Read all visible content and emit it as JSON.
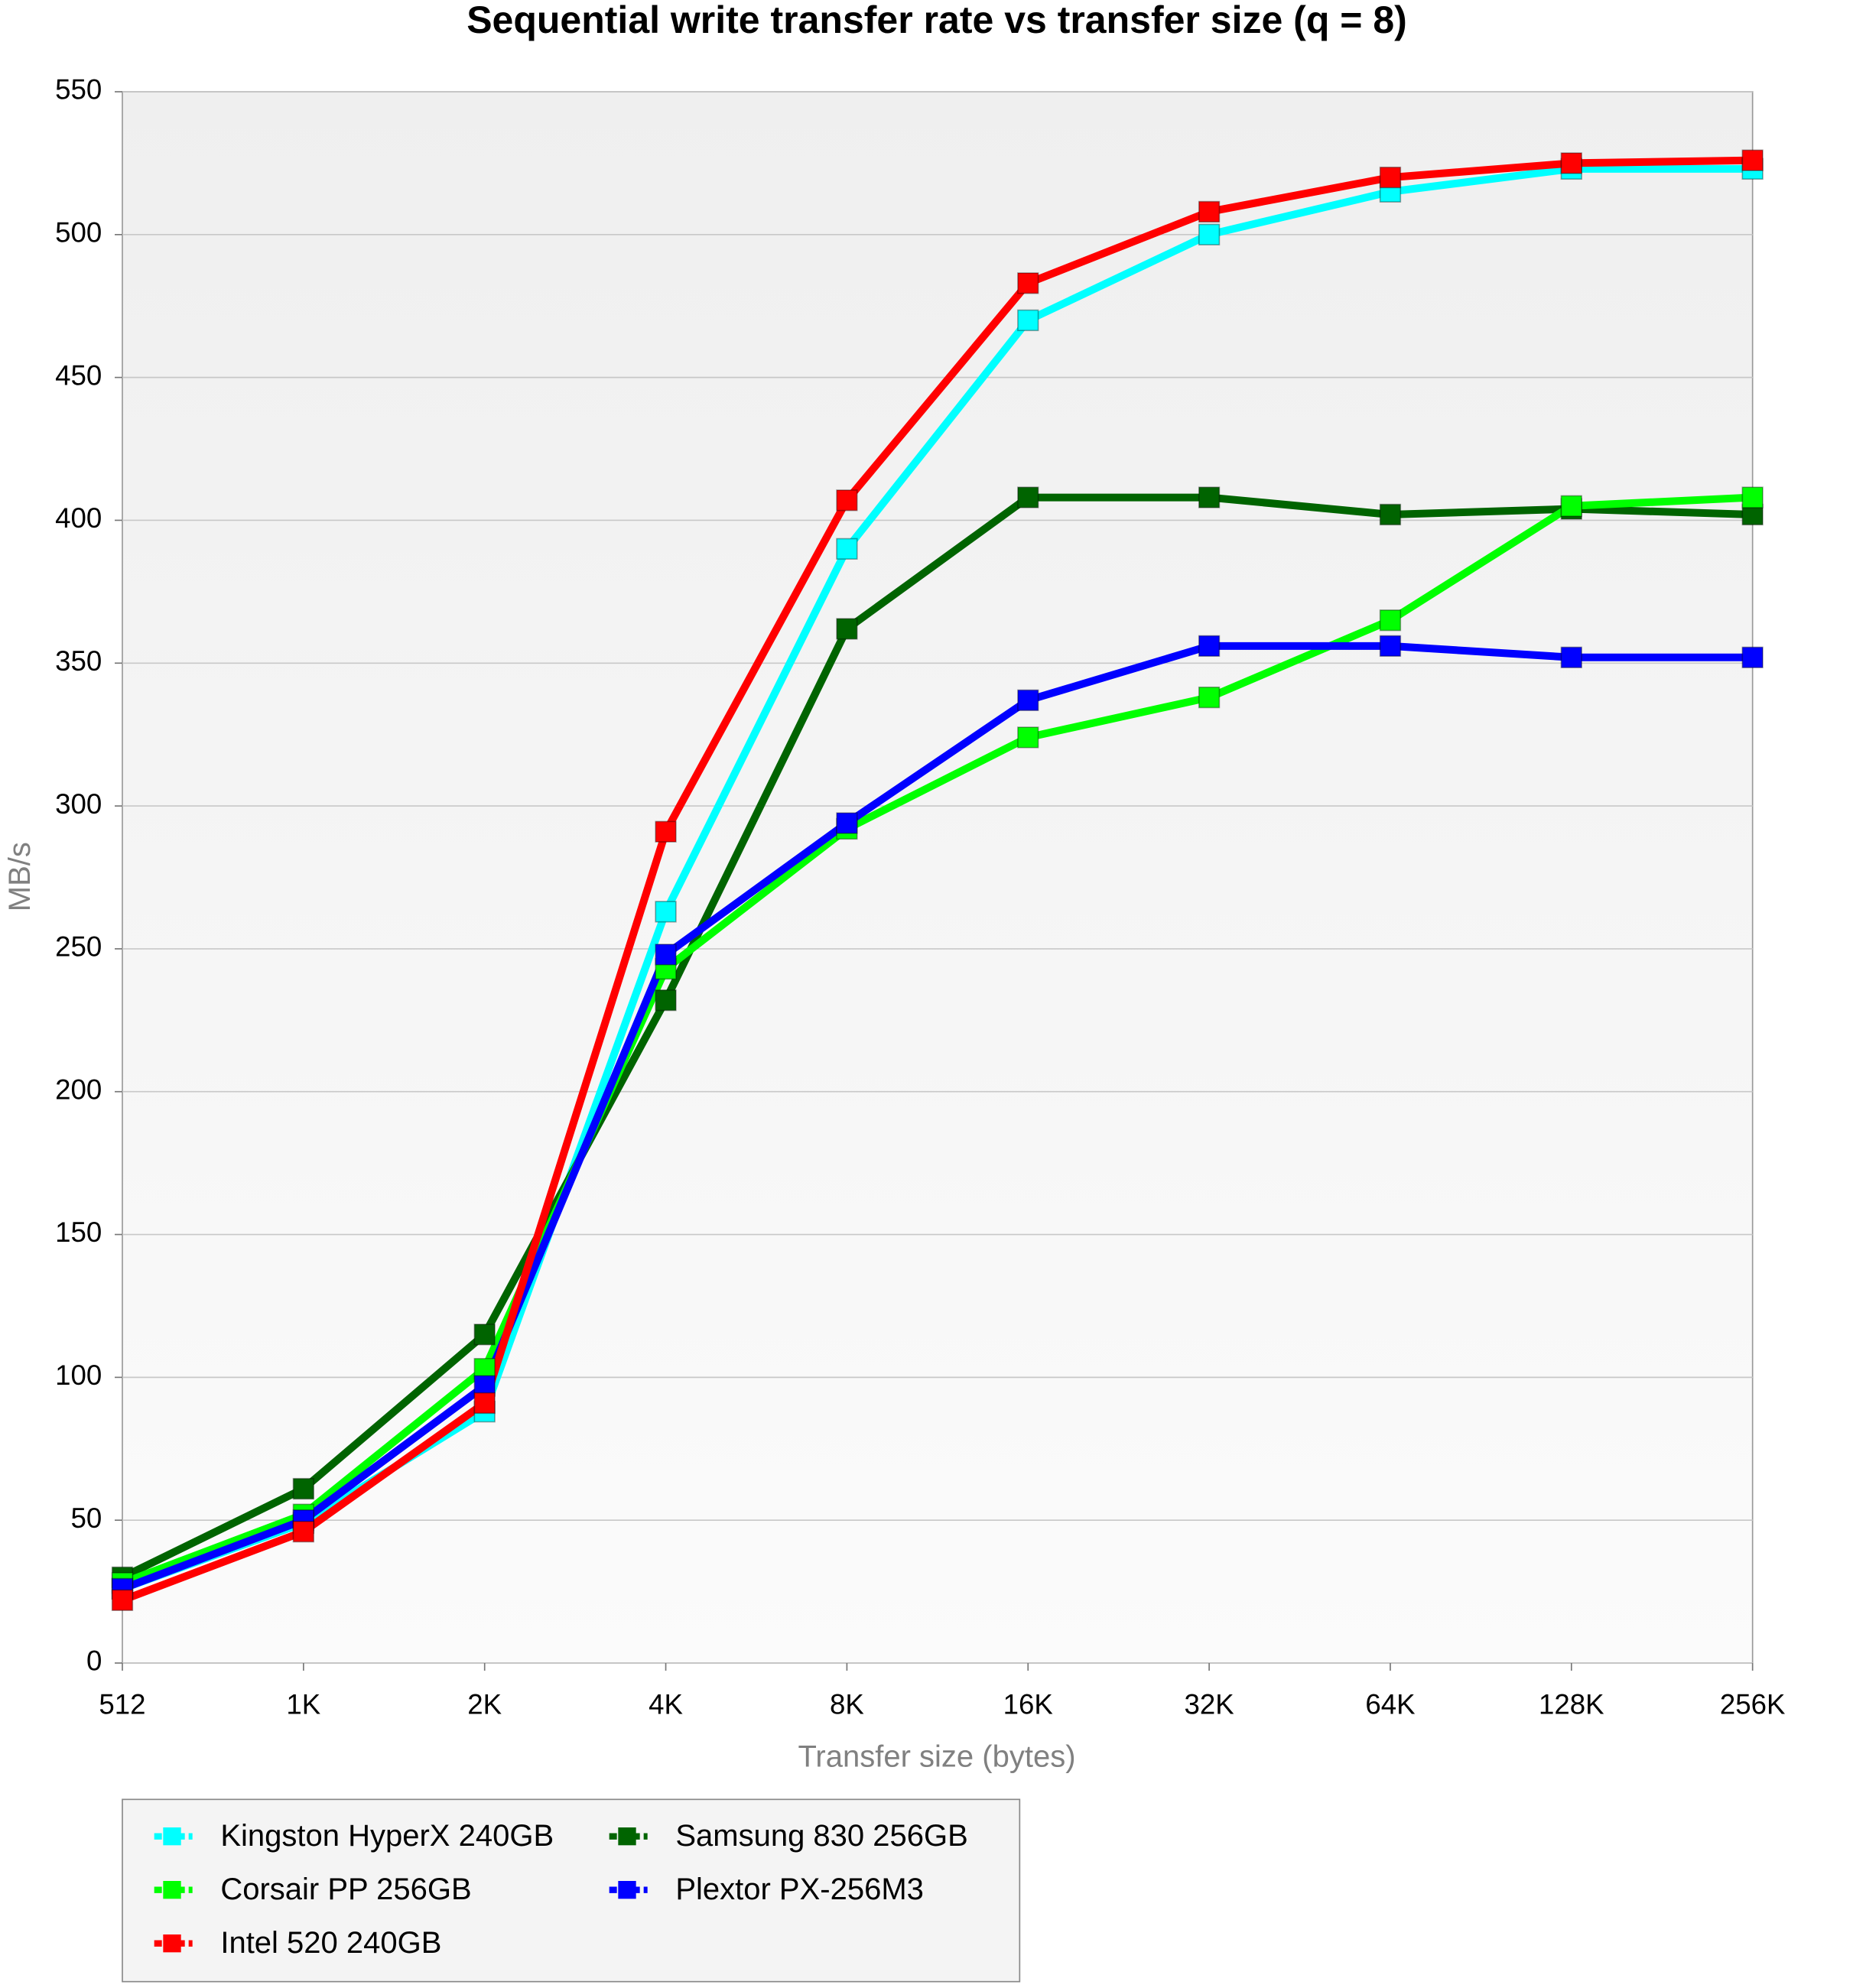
{
  "chart_data": {
    "type": "line",
    "title": "Sequential write transfer rate vs transfer size (q = 8)",
    "x_label": "Transfer size (bytes)",
    "y_label": "MB/s",
    "categories": [
      "512",
      "1K",
      "2K",
      "4K",
      "8K",
      "16K",
      "32K",
      "64K",
      "128K",
      "256K"
    ],
    "series": [
      {
        "name": "Kingston HyperX 240GB",
        "color": "#00ffff",
        "values": [
          26,
          49,
          88,
          263,
          390,
          470,
          500,
          515,
          523,
          523
        ]
      },
      {
        "name": "Samsung 830 256GB",
        "color": "#006400",
        "values": [
          30,
          61,
          115,
          232,
          362,
          408,
          408,
          402,
          404,
          402
        ]
      },
      {
        "name": "Corsair PP 256GB",
        "color": "#00ff00",
        "values": [
          28,
          52,
          103,
          243,
          292,
          324,
          338,
          365,
          405,
          408
        ]
      },
      {
        "name": "Plextor PX-256M3",
        "color": "#0000ff",
        "values": [
          26,
          50,
          97,
          248,
          294,
          337,
          356,
          356,
          352,
          352
        ]
      },
      {
        "name": "Intel 520 240GB",
        "color": "#ff0000",
        "values": [
          22,
          46,
          91,
          291,
          407,
          483,
          508,
          520,
          525,
          526
        ]
      }
    ],
    "ylim": [
      0,
      550
    ],
    "yticks": [
      0,
      50,
      100,
      150,
      200,
      250,
      300,
      350,
      400,
      450,
      500,
      550
    ],
    "grid": true,
    "legend": "bottom"
  }
}
